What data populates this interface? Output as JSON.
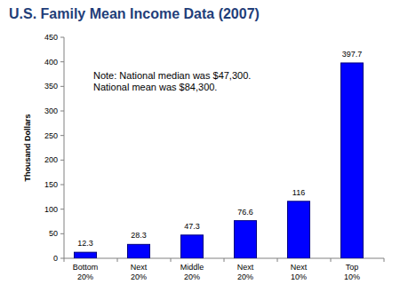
{
  "chart_data": {
    "type": "bar",
    "title": "U.S. Family Mean Income Data (2007)",
    "y_label": "Thousand Dollars",
    "annotations": [
      "Note: National median was $47,300.",
      "National mean was $84,300."
    ],
    "categories": [
      "Bottom 20%",
      "Next 20%",
      "Middle 20%",
      "Next 20%",
      "Next 10%",
      "Top 10%"
    ],
    "values": [
      12.3,
      28.3,
      47.3,
      76.6,
      116,
      397.7
    ],
    "color": "#0000ff",
    "ylim": [
      0,
      450
    ],
    "yticks": [
      0,
      50,
      100,
      150,
      200,
      250,
      300,
      350,
      400,
      450
    ],
    "grid": false,
    "data_labels": true
  }
}
